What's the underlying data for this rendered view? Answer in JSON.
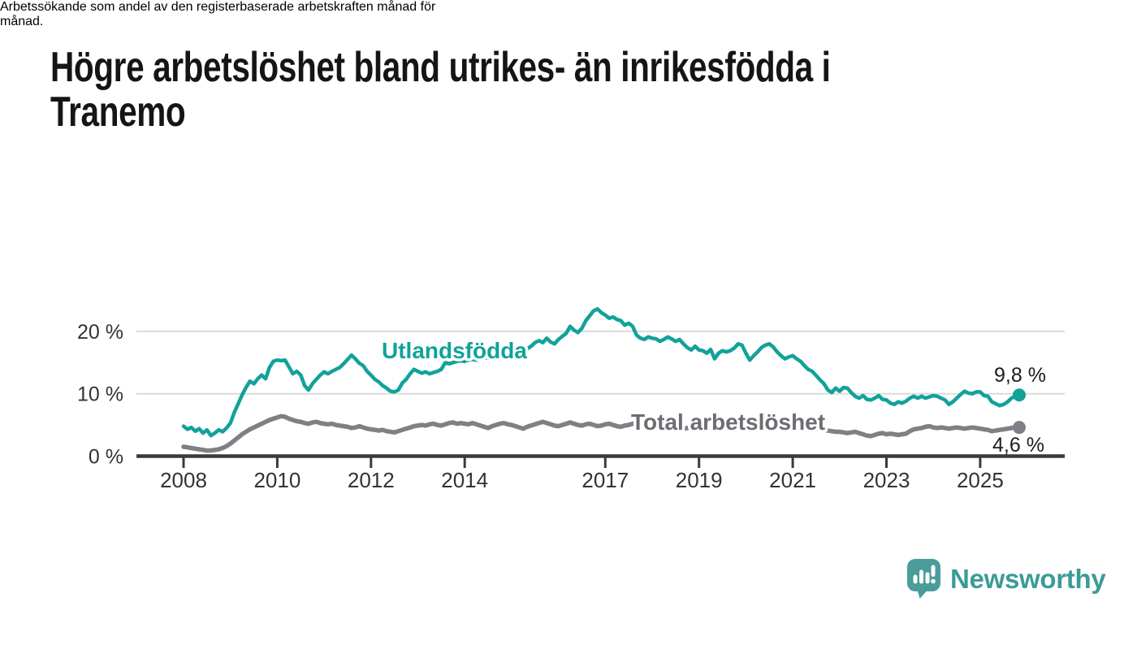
{
  "header": {
    "title": "Högre arbetslöshet bland utrikes- än inrikesfödda i Tranemo",
    "title_lines": [
      "Högre arbetslöshet bland utrikes- än inrikesfödda i",
      "Tranemo"
    ],
    "subtitle": "Arbetssökande som andel av den registerbaserade arbetskraften månad för månad.",
    "subtitle_lines": [
      "Arbetssökande som andel av den registerbaserade arbetskraften månad för",
      "månad."
    ]
  },
  "chart_data": {
    "type": "line",
    "title": "Högre arbetslöshet bland utrikes- än inrikesfödda i Tranemo",
    "subtitle": "Arbetssökande som andel av den registerbaserade arbetskraften månad för månad.",
    "unit": "percent",
    "x_interval": "monthly",
    "x_start": "2008-01",
    "x_end": "2025-11",
    "grid": "horizontal",
    "legend_position": "inline-labels",
    "x_axis": {
      "ticks": [
        {
          "year": 2008,
          "label": "2008"
        },
        {
          "year": 2010,
          "label": "2010"
        },
        {
          "year": 2012,
          "label": "2012"
        },
        {
          "year": 2014,
          "label": "2014"
        },
        {
          "year": 2017,
          "label": "2017"
        },
        {
          "year": 2019,
          "label": "2019"
        },
        {
          "year": 2021,
          "label": "2021"
        },
        {
          "year": 2023,
          "label": "2023"
        },
        {
          "year": 2025,
          "label": "2025"
        }
      ]
    },
    "y_axis": {
      "range": [
        0,
        26
      ],
      "ticks": [
        {
          "value": 0,
          "label": "0 %"
        },
        {
          "value": 10,
          "label": "10 %"
        },
        {
          "value": 20,
          "label": "20 %"
        }
      ]
    },
    "style": {
      "axis_color": "#3A3A3A",
      "grid_color": "#DBDBDB",
      "tick_label_color": "#333333",
      "value_label_color": "#1D1D1D"
    },
    "series": [
      {
        "name": "Utlandsfödda",
        "color": "#11A29A",
        "label_color": "#11A29A",
        "end_label": "9,8 %",
        "end_value": 9.8,
        "values": [
          4.8,
          4.3,
          4.6,
          4.0,
          4.4,
          3.7,
          4.2,
          3.3,
          3.7,
          4.2,
          3.9,
          4.5,
          5.3,
          7.0,
          8.4,
          9.8,
          11.0,
          12.0,
          11.6,
          12.4,
          13.0,
          12.4,
          14.2,
          15.2,
          15.4,
          15.3,
          15.4,
          14.3,
          13.2,
          13.6,
          13.0,
          11.3,
          10.6,
          11.6,
          12.3,
          13.0,
          13.5,
          13.2,
          13.6,
          13.9,
          14.2,
          14.8,
          15.5,
          16.2,
          15.6,
          14.9,
          14.5,
          13.6,
          13.0,
          12.3,
          11.9,
          11.3,
          10.9,
          10.4,
          10.3,
          10.6,
          11.7,
          12.3,
          13.2,
          13.9,
          13.6,
          13.3,
          13.5,
          13.2,
          13.4,
          13.6,
          13.9,
          15.0,
          14.8,
          15.0,
          15.2,
          15.3,
          15.2,
          15.4,
          15.5,
          15.4,
          15.6,
          15.8,
          15.7,
          15.9,
          16.1,
          16.0,
          16.2,
          16.4,
          16.3,
          16.5,
          16.7,
          16.9,
          17.2,
          17.6,
          18.2,
          18.5,
          18.2,
          18.9,
          18.3,
          18.0,
          18.7,
          19.2,
          19.7,
          20.8,
          20.2,
          19.8,
          20.5,
          21.7,
          22.5,
          23.3,
          23.6,
          23.0,
          22.6,
          22.1,
          22.3,
          21.9,
          21.7,
          21.0,
          21.3,
          20.8,
          19.4,
          18.9,
          18.7,
          19.1,
          18.9,
          18.8,
          18.4,
          18.7,
          19.1,
          18.8,
          18.4,
          18.7,
          18.0,
          17.4,
          17.0,
          17.6,
          17.0,
          16.9,
          16.5,
          17.1,
          15.6,
          16.5,
          16.9,
          16.7,
          16.9,
          17.3,
          18.0,
          17.8,
          16.5,
          15.4,
          16.1,
          16.7,
          17.4,
          17.8,
          18.0,
          17.5,
          16.7,
          16.1,
          15.6,
          15.9,
          16.1,
          15.6,
          15.2,
          14.5,
          13.9,
          13.6,
          12.9,
          12.2,
          11.6,
          10.6,
          10.2,
          10.9,
          10.4,
          11.0,
          10.9,
          10.2,
          9.6,
          9.3,
          9.7,
          9.1,
          9.0,
          9.3,
          9.7,
          9.1,
          9.0,
          8.5,
          8.3,
          8.7,
          8.5,
          8.8,
          9.3,
          9.6,
          9.3,
          9.6,
          9.3,
          9.5,
          9.7,
          9.6,
          9.3,
          9.0,
          8.3,
          8.7,
          9.3,
          9.9,
          10.4,
          10.1,
          10.0,
          10.3,
          10.3,
          9.7,
          9.6,
          8.7,
          8.4,
          8.1,
          8.3,
          8.7,
          9.3,
          9.6,
          9.8
        ]
      },
      {
        "name": "Total arbetslöshet",
        "color": "#7F7F85",
        "label_color": "#6C6C72",
        "end_label": "4,6 %",
        "end_value": 4.6,
        "values": [
          1.5,
          1.4,
          1.3,
          1.2,
          1.1,
          1.0,
          0.9,
          0.9,
          1.0,
          1.1,
          1.3,
          1.6,
          2.0,
          2.5,
          3.0,
          3.5,
          3.9,
          4.3,
          4.6,
          4.9,
          5.2,
          5.5,
          5.8,
          6.0,
          6.2,
          6.4,
          6.3,
          6.0,
          5.8,
          5.6,
          5.5,
          5.3,
          5.2,
          5.4,
          5.5,
          5.3,
          5.2,
          5.1,
          5.2,
          5.0,
          4.9,
          4.8,
          4.7,
          4.5,
          4.6,
          4.8,
          4.6,
          4.4,
          4.3,
          4.2,
          4.1,
          4.2,
          4.0,
          3.9,
          3.8,
          4.0,
          4.2,
          4.4,
          4.6,
          4.8,
          4.9,
          5.0,
          4.9,
          5.1,
          5.2,
          5.0,
          4.9,
          5.1,
          5.3,
          5.4,
          5.2,
          5.3,
          5.2,
          5.1,
          5.3,
          5.1,
          4.9,
          4.7,
          4.5,
          4.8,
          5.0,
          5.2,
          5.3,
          5.1,
          5.0,
          4.8,
          4.6,
          4.4,
          4.7,
          4.9,
          5.1,
          5.3,
          5.5,
          5.3,
          5.1,
          4.9,
          4.8,
          5.0,
          5.2,
          5.4,
          5.2,
          5.0,
          4.9,
          5.1,
          5.2,
          5.0,
          4.8,
          4.9,
          5.1,
          5.2,
          5.0,
          4.8,
          4.7,
          4.9,
          5.0,
          5.2,
          5.1,
          4.9,
          4.8,
          4.7,
          4.6,
          4.5,
          4.6,
          4.7,
          4.8,
          4.7,
          4.6,
          4.5,
          4.4,
          4.5,
          4.6,
          4.5,
          4.4,
          4.5,
          4.6,
          4.5,
          4.4,
          4.3,
          4.4,
          4.5,
          4.6,
          4.7,
          4.8,
          4.9,
          5.0,
          5.2,
          5.5,
          5.7,
          5.8,
          5.7,
          5.6,
          5.5,
          5.4,
          5.3,
          5.2,
          5.1,
          5.0,
          4.9,
          4.8,
          4.7,
          4.6,
          4.5,
          4.4,
          4.3,
          4.2,
          4.1,
          4.0,
          3.9,
          3.9,
          3.8,
          3.7,
          3.8,
          3.9,
          3.7,
          3.5,
          3.3,
          3.2,
          3.4,
          3.6,
          3.7,
          3.5,
          3.6,
          3.5,
          3.4,
          3.5,
          3.6,
          4.0,
          4.3,
          4.4,
          4.5,
          4.7,
          4.8,
          4.6,
          4.5,
          4.6,
          4.5,
          4.4,
          4.5,
          4.6,
          4.5,
          4.4,
          4.5,
          4.6,
          4.5,
          4.4,
          4.3,
          4.2,
          4.0,
          4.1,
          4.2,
          4.3,
          4.4,
          4.5,
          4.6,
          4.6
        ]
      }
    ]
  },
  "branding": {
    "logo_text": "Newsworthy",
    "logo_icon": "bar-chart-speech-bubble-icon",
    "icon_color": "#4A9D99",
    "icon_glyph_color": "#FFFFFF",
    "text_color": "#3B9B96"
  }
}
